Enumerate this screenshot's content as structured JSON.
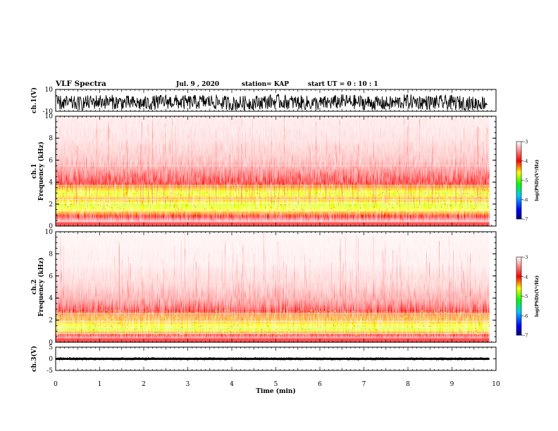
{
  "header": {
    "title": "VLF Spectra",
    "date": "Jul. 9 , 2020",
    "station": "station= KAP",
    "start": "start UT =  0 : 10 : 1"
  },
  "chart_data": [
    {
      "type": "line",
      "panel": "ch1-waveform",
      "ylabel": "ch.1(V)",
      "ylim": [
        -10,
        10
      ],
      "yticks": [
        "10",
        "-10"
      ],
      "x": [
        0,
        0.5,
        1,
        1.5,
        2,
        2.5,
        3,
        3.5,
        4,
        4.5,
        5,
        5.5,
        6,
        6.5,
        7,
        7.5,
        8,
        8.5,
        9,
        9.5,
        9.8
      ],
      "values": [
        -2,
        -3,
        -1,
        -2,
        -3,
        -1,
        -2,
        -1,
        -3,
        -2,
        -1,
        -2,
        -3,
        -1,
        -2,
        -3,
        -1,
        -2,
        -2,
        -3,
        -2
      ],
      "envelope": [
        -9,
        9
      ],
      "color": "#000000"
    },
    {
      "type": "heatmap",
      "panel": "ch1-spectrogram",
      "ylabel": "ch.1\nFrequency (kHz)",
      "ylim": [
        0,
        10
      ],
      "yticks": [
        "0",
        "2",
        "4",
        "6",
        "8",
        "10"
      ],
      "xlim": [
        0,
        10
      ],
      "data_x_end": 9.85,
      "colorbar": {
        "label": "log(PSD)(V²/Hz)",
        "range": [
          -7,
          -3
        ],
        "ticks": [
          "-3",
          "-4",
          "-5",
          "-6",
          "-7"
        ]
      },
      "profile_log_psd": [
        {
          "khz": 0.0,
          "v": -3.1
        },
        {
          "khz": 0.5,
          "v": -3.3
        },
        {
          "khz": 1.0,
          "v": -4.1
        },
        {
          "khz": 1.5,
          "v": -4.6
        },
        {
          "khz": 2.0,
          "v": -4.7
        },
        {
          "khz": 2.5,
          "v": -4.4
        },
        {
          "khz": 3.0,
          "v": -4.7
        },
        {
          "khz": 3.5,
          "v": -4.4
        },
        {
          "khz": 4.0,
          "v": -3.95
        },
        {
          "khz": 4.5,
          "v": -3.75
        },
        {
          "khz": 5.0,
          "v": -3.55
        },
        {
          "khz": 6.0,
          "v": -3.3
        },
        {
          "khz": 8.0,
          "v": -3.15
        },
        {
          "khz": 10.0,
          "v": -3.1
        }
      ],
      "lines_khz": [
        1.4,
        2.1,
        2.4,
        3.7,
        5.5
      ]
    },
    {
      "type": "heatmap",
      "panel": "ch2-spectrogram",
      "ylabel": "ch.2\nFrequency (kHz)",
      "ylim": [
        0,
        10
      ],
      "yticks": [
        "0",
        "2",
        "4",
        "6",
        "8",
        "10"
      ],
      "xlim": [
        0,
        10
      ],
      "data_x_end": 9.85,
      "colorbar": {
        "label": "log(PSD)(V²/Hz)",
        "range": [
          -7,
          -3
        ],
        "ticks": [
          "-3",
          "-4",
          "-5",
          "-6",
          "-7"
        ]
      },
      "profile_log_psd": [
        {
          "khz": 0.0,
          "v": -3.1
        },
        {
          "khz": 0.4,
          "v": -3.4
        },
        {
          "khz": 0.8,
          "v": -4.2
        },
        {
          "khz": 1.2,
          "v": -4.7
        },
        {
          "khz": 1.6,
          "v": -4.6
        },
        {
          "khz": 2.0,
          "v": -4.4
        },
        {
          "khz": 2.5,
          "v": -4.3
        },
        {
          "khz": 3.0,
          "v": -3.9
        },
        {
          "khz": 3.5,
          "v": -3.6
        },
        {
          "khz": 4.0,
          "v": -3.45
        },
        {
          "khz": 5.0,
          "v": -3.25
        },
        {
          "khz": 7.0,
          "v": -3.1
        },
        {
          "khz": 10.0,
          "v": -3.05
        }
      ],
      "lines_khz": [
        0.8,
        1.3,
        1.9,
        2.6
      ]
    },
    {
      "type": "line",
      "panel": "ch3-waveform",
      "ylabel": "ch.3(V)",
      "ylim": [
        -5,
        5
      ],
      "yticks": [
        "5",
        "0",
        "-5"
      ],
      "xlabel": "Time (min)",
      "xlim": [
        0,
        10
      ],
      "xticks": [
        "0",
        "1",
        "2",
        "3",
        "4",
        "5",
        "6",
        "7",
        "8",
        "9",
        "10"
      ],
      "x": [
        0,
        9.85
      ],
      "values": [
        0,
        0
      ],
      "envelope": [
        -0.6,
        0.6
      ],
      "color": "#000000"
    }
  ]
}
